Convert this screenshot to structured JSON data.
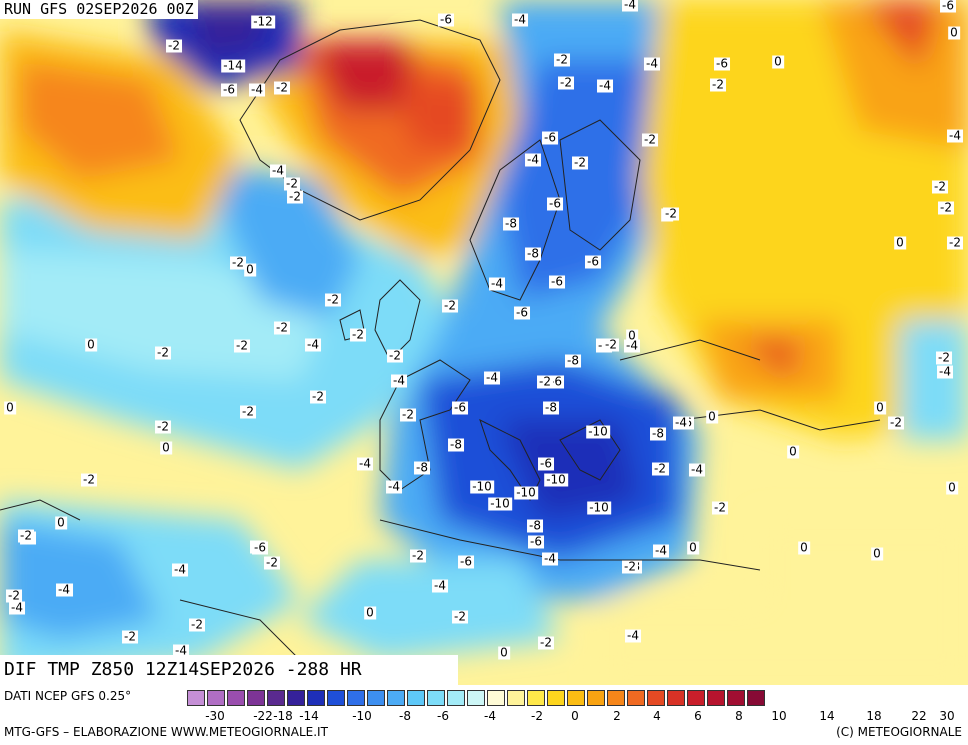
{
  "header": {
    "run_label": "RUN GFS 02SEP2026 00Z"
  },
  "map": {
    "valid_label": "DIF TMP Z850 12Z14SEP2026 -288 HR",
    "labels": [
      "-2",
      "-4",
      "-12",
      "-2",
      "-14",
      "-6",
      "-4",
      "-2",
      "-2",
      "-4",
      "-6",
      "-2",
      "-4",
      "-6",
      "-2",
      "-4",
      "-2",
      "-4",
      "-2",
      "-2",
      "0",
      "-2",
      "0",
      "0",
      "-2",
      "-2",
      "-4",
      "-6",
      "-8",
      "-8",
      "-6",
      "-6",
      "-4",
      "-4",
      "-4",
      "-8",
      "-6",
      "-4",
      "-6",
      "-2",
      "-2",
      "-2",
      "-2",
      "-2",
      "-2",
      "-2",
      "-4",
      "-4",
      "-4",
      "-4",
      "-6",
      "-8",
      "-10",
      "-10",
      "-10",
      "-10",
      "-6",
      "-8",
      "-6",
      "-8",
      "-10",
      "-8",
      "-6",
      "-4",
      "-6",
      "-10",
      "-6",
      "-4",
      "-4",
      "-2",
      "-2",
      "-4",
      "-8",
      "-2",
      "-4",
      "-2",
      "-4",
      "-2",
      "-2",
      "-6",
      "-4",
      "-4",
      "-2",
      "-2",
      "-2",
      "-2",
      "-6",
      "-4",
      "-4",
      "-2",
      "-2",
      "0",
      "0",
      "0",
      "0",
      "0",
      "0",
      "0",
      "0",
      "0",
      "0",
      "0",
      "0",
      "0",
      "0",
      "0",
      "-2",
      "-2",
      "-2",
      "-4",
      "-2",
      "-2",
      "-2",
      "0",
      "-6",
      "-2",
      "-4",
      "-4",
      "-2",
      "-2",
      "-4",
      "-6",
      "-8",
      "-2",
      "-4",
      "-2",
      "-4",
      "-6"
    ]
  },
  "footer": {
    "source": "DATI NCEP GFS 0.25°",
    "credit_left": "MTG-GFS – ELABORAZIONE WWW.METEOGIORNALE.IT",
    "credit_right": "(C) METEOGIORNALE",
    "scale_colors": [
      "#c58fd6",
      "#b06ec4",
      "#9a4eae",
      "#7d3496",
      "#5a2a8f",
      "#35219a",
      "#1e2fb8",
      "#1f4fd8",
      "#2f6fe8",
      "#3d8ff0",
      "#4cabf5",
      "#5ec8f8",
      "#7ddcf8",
      "#a3ebf7",
      "#cdf6f6",
      "#fffbd6",
      "#fff39a",
      "#ffe84a",
      "#fdd51e",
      "#fbbd14",
      "#f9a312",
      "#f6861a",
      "#f06a22",
      "#e54a24",
      "#d83226",
      "#c91f2b",
      "#b7142e",
      "#a10e32",
      "#870a35"
    ],
    "scale_ticks": [
      "-30",
      "-22",
      "-18",
      "-14",
      "-10",
      "-8",
      "-6",
      "-4",
      "-2",
      "0",
      "2",
      "4",
      "6",
      "8",
      "10",
      "14",
      "18",
      "22",
      "30"
    ]
  }
}
